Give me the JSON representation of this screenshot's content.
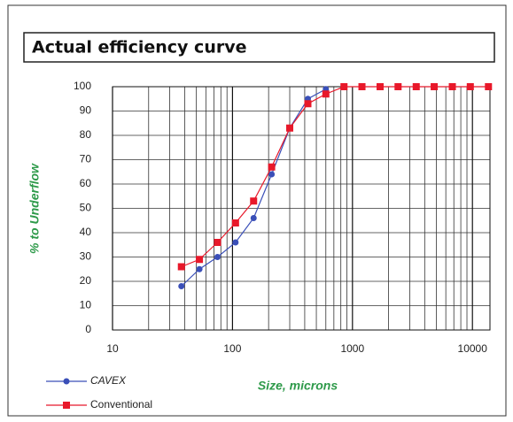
{
  "chart_data": {
    "type": "line",
    "title": "Actual efficiency curve",
    "x_label": "Size, microns",
    "y_label": "% to Underflow",
    "x_log": true,
    "grid": true,
    "minor_grid": true,
    "legend": "bottom-left",
    "xlim": [
      10,
      14000
    ],
    "xticks": [
      10,
      100,
      1000,
      10000
    ],
    "ylim": [
      0,
      100
    ],
    "yticks": [
      0,
      10,
      20,
      30,
      40,
      50,
      60,
      70,
      80,
      90,
      100
    ],
    "series": [
      {
        "name": "CAVEX",
        "color": "#3a4fb8",
        "marker": "circle",
        "legend_color": "#e8763a",
        "x": [
          37.5,
          53,
          75,
          106,
          150,
          212,
          300,
          425,
          600
        ],
        "values": [
          18,
          25,
          30,
          36,
          46,
          64,
          83,
          95,
          99
        ]
      },
      {
        "name": "Conventional",
        "color": "#e8182a",
        "marker": "square",
        "legend_color": "#333333",
        "x": [
          37.5,
          53,
          75,
          106,
          150,
          212,
          300,
          425,
          600,
          850,
          1200,
          1700,
          2400,
          3400,
          4800,
          6800,
          9600,
          13600
        ],
        "values": [
          26,
          29,
          36,
          44,
          53,
          67,
          83,
          93,
          97,
          100,
          100,
          100,
          100,
          100,
          100,
          100,
          100,
          100
        ]
      }
    ]
  }
}
